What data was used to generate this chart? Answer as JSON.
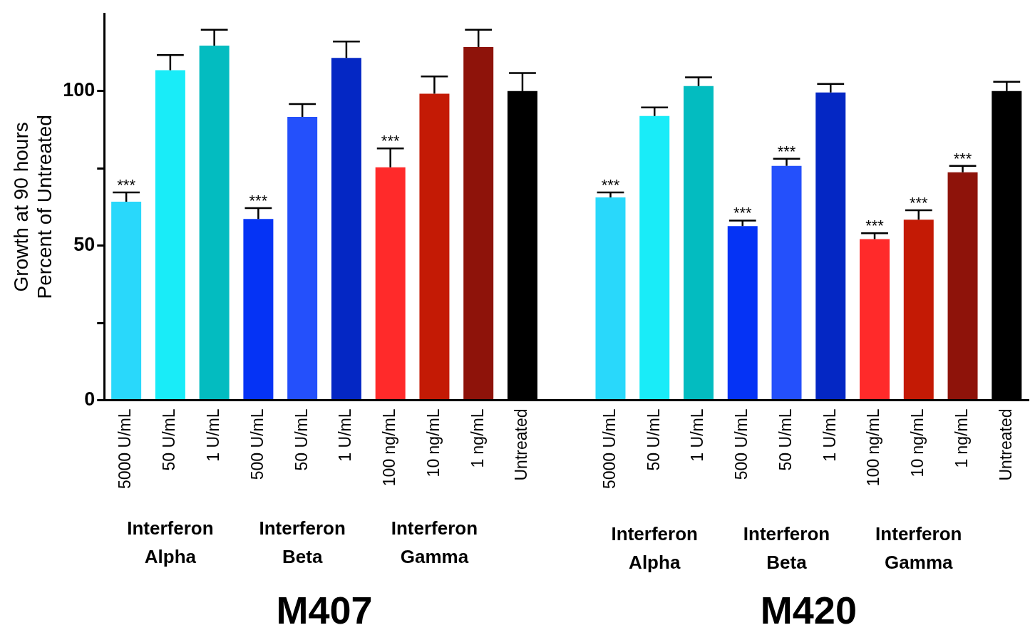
{
  "chart_data": {
    "type": "bar",
    "ylabel": "Growth at 90 hours\nPercent of Untreated",
    "categories": [
      "5000 U/mL",
      "50 U/mL",
      "1 U/mL",
      "500 U/mL",
      "50 U/mL",
      "1 U/mL",
      "100 ng/mL",
      "10 ng/mL",
      "1 ng/mL",
      "Untreated",
      null,
      "5000 U/mL",
      "50 U/mL",
      "1 U/mL",
      "500 U/mL",
      "50 U/mL",
      "1 U/mL",
      "100 ng/mL",
      "10 ng/mL",
      "1 ng/mL",
      "Untreated"
    ],
    "values": [
      64.2,
      106.7,
      114.7,
      58.6,
      91.6,
      110.7,
      75.3,
      99.1,
      114.2,
      100,
      null,
      65.6,
      91.9,
      101.6,
      56.3,
      75.8,
      99.5,
      52.1,
      58.4,
      73.7,
      100
    ],
    "errors": [
      [
        64.2,
        67.2
      ],
      [
        106.7,
        111.6
      ],
      [
        114.7,
        119.8
      ],
      [
        58.6,
        62.1
      ],
      [
        91.6,
        95.8
      ],
      [
        110.7,
        116
      ],
      [
        75.3,
        81.4
      ],
      [
        99.1,
        104.7
      ],
      [
        114.2,
        119.8
      ],
      [
        100,
        105.8
      ],
      null,
      [
        65.6,
        67.2
      ],
      [
        91.9,
        94.7
      ],
      [
        101.6,
        104.4
      ],
      [
        56.3,
        58.1
      ],
      [
        75.8,
        78.1
      ],
      [
        99.5,
        102.3
      ],
      [
        52.1,
        54
      ],
      [
        58.4,
        61.4
      ],
      [
        73.7,
        75.8
      ],
      [
        100,
        103
      ]
    ],
    "value_labels": [
      "***",
      null,
      null,
      "***",
      null,
      null,
      "***",
      null,
      null,
      null,
      null,
      "***",
      null,
      null,
      "***",
      "***",
      null,
      "***",
      "***",
      "***",
      null
    ],
    "colors": [
      "#29d8fb",
      "#19ecf8",
      "#03bcc0",
      "#0533f5",
      "#2450fb",
      "#0427c4",
      "#ff2a2a",
      "#c41a05",
      "#8e130a",
      "#000000",
      "#ffffff",
      "#29d8fb",
      "#19ecf8",
      "#03bcc0",
      "#0533f5",
      "#2450fb",
      "#0427c4",
      "#ff2a2a",
      "#c41a05",
      "#8e130a",
      "#000000"
    ],
    "ylim": [
      0,
      125
    ],
    "yticks": [
      0,
      {
        "value": 25,
        "label": null
      },
      50,
      {
        "value": 75,
        "label": null
      },
      100
    ],
    "annotations": [
      "Interferon Alpha",
      "Interferon Beta",
      "Interferon Gamma",
      "Interferon Alpha",
      "Interferon Beta",
      "Interferon Gamma",
      "M407",
      "M420"
    ],
    "grid": false,
    "legend": false
  }
}
